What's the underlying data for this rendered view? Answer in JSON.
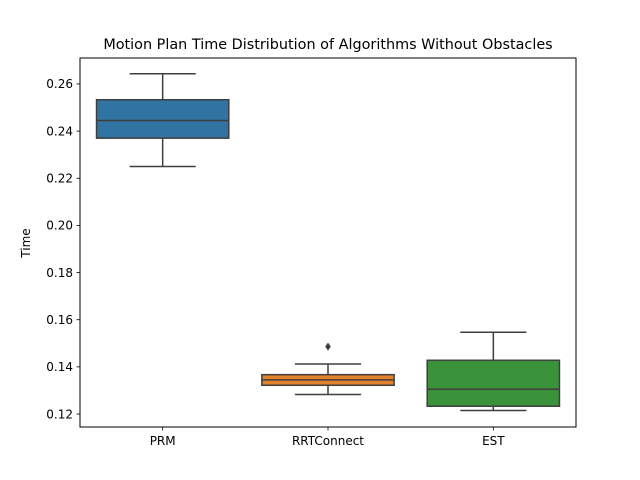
{
  "chart_data": {
    "type": "box",
    "title": "Motion Plan Time Distribution of Algorithms Without Obstacles",
    "xlabel": "",
    "ylabel": "Time",
    "ylim": [
      0.1145,
      0.271
    ],
    "yticks": [
      0.12,
      0.14,
      0.16,
      0.18,
      0.2,
      0.22,
      0.24,
      0.26
    ],
    "ytick_labels": [
      "0.12",
      "0.14",
      "0.16",
      "0.18",
      "0.20",
      "0.22",
      "0.24",
      "0.26"
    ],
    "grid": false,
    "categories": [
      "PRM",
      "RRTConnect",
      "EST"
    ],
    "series": [
      {
        "category": "PRM",
        "color": "#3274a1",
        "whisker_low": 0.225,
        "q1": 0.237,
        "median": 0.2445,
        "q3": 0.2533,
        "whisker_high": 0.2643,
        "outliers": []
      },
      {
        "category": "RRTConnect",
        "color": "#e1812c",
        "whisker_low": 0.1283,
        "q1": 0.1322,
        "median": 0.1345,
        "q3": 0.1367,
        "whisker_high": 0.1412,
        "outliers": [
          0.1486
        ]
      },
      {
        "category": "EST",
        "color": "#3a923a",
        "whisker_low": 0.1215,
        "q1": 0.1233,
        "median": 0.1305,
        "q3": 0.1428,
        "whisker_high": 0.1547,
        "outliers": []
      }
    ]
  }
}
